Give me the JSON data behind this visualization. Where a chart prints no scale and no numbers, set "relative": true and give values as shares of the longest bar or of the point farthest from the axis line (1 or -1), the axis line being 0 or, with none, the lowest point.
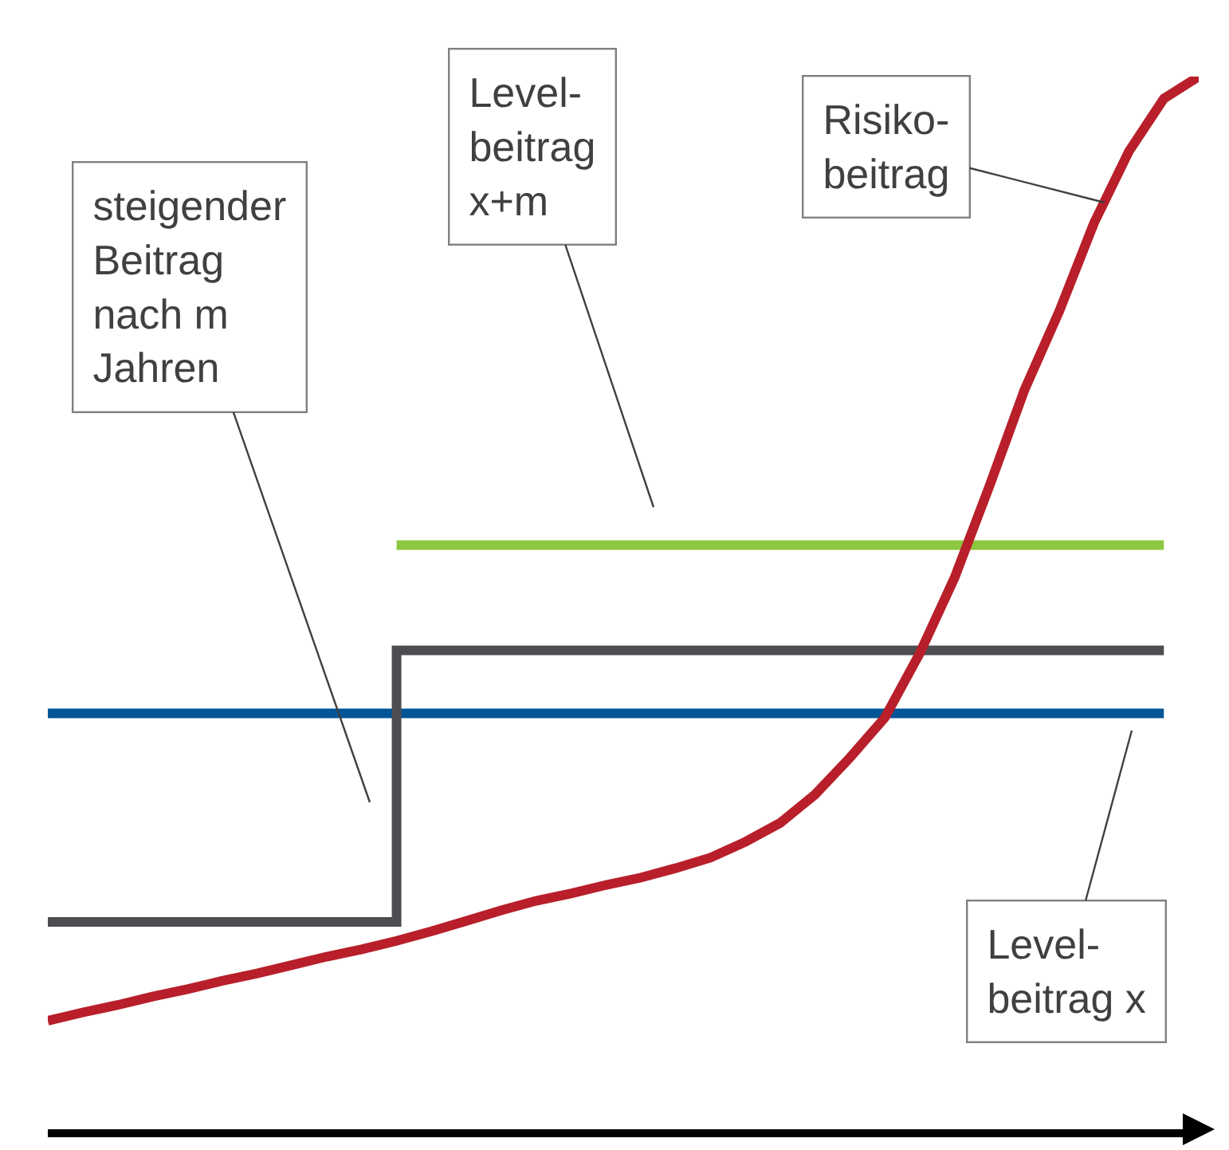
{
  "chart_data": {
    "type": "line",
    "relative": true,
    "categories": [
      null,
      null,
      null,
      null,
      null,
      null,
      null,
      null,
      null,
      null,
      null,
      null,
      null,
      null,
      null,
      null,
      null,
      null,
      null,
      null,
      null,
      null,
      null,
      null,
      null,
      null,
      null,
      null,
      null,
      null,
      null,
      null,
      null,
      null
    ],
    "series": [
      {
        "color": "#005596",
        "values": [
          0.395,
          0.395,
          0.395,
          0.395,
          0.395,
          0.395,
          0.395,
          0.395,
          0.395,
          0.395,
          0.395,
          0.395,
          0.395,
          0.395,
          0.395,
          0.395,
          0.395,
          0.395,
          0.395,
          0.395,
          0.395,
          0.395,
          0.395,
          0.395,
          0.395,
          0.395,
          0.395,
          0.395,
          0.395,
          0.395,
          0.395,
          0.395,
          0.395,
          null
        ]
      },
      {
        "color": "#8dc63f",
        "values": [
          null,
          null,
          null,
          null,
          null,
          null,
          null,
          null,
          null,
          null,
          0.555,
          0.555,
          0.555,
          0.555,
          0.555,
          0.555,
          0.555,
          0.555,
          0.555,
          0.555,
          0.555,
          0.555,
          0.555,
          0.555,
          0.555,
          0.555,
          0.555,
          0.555,
          0.555,
          0.555,
          0.555,
          0.555,
          0.555,
          null
        ]
      },
      {
        "type": "step",
        "color": "#4d4d52",
        "values": [
          0.197,
          0.197,
          0.197,
          0.197,
          0.197,
          0.197,
          0.197,
          0.197,
          0.197,
          0.197,
          0.455,
          0.455,
          0.455,
          0.455,
          0.455,
          0.455,
          0.455,
          0.455,
          0.455,
          0.455,
          0.455,
          0.455,
          0.455,
          0.455,
          0.455,
          0.455,
          0.455,
          0.455,
          0.455,
          0.455,
          0.455,
          0.455,
          0.455,
          null
        ]
      },
      {
        "color": "#b81f2a",
        "values": [
          0.103,
          0.111,
          0.118,
          0.126,
          0.133,
          0.141,
          0.148,
          0.156,
          0.164,
          0.171,
          0.179,
          0.188,
          0.198,
          0.208,
          0.217,
          0.224,
          0.232,
          0.239,
          0.248,
          0.258,
          0.273,
          0.291,
          0.318,
          0.353,
          0.391,
          0.452,
          0.524,
          0.611,
          0.702,
          0.777,
          0.861,
          0.929,
          0.979,
          1
        ]
      }
    ],
    "annotations": [
      "steigender\nBeitrag\nnach m\nJahren",
      "Level-\nbeitrag\nx+m",
      "Risiko-\nbeitrag",
      "Level-\nbeitrag x"
    ]
  }
}
